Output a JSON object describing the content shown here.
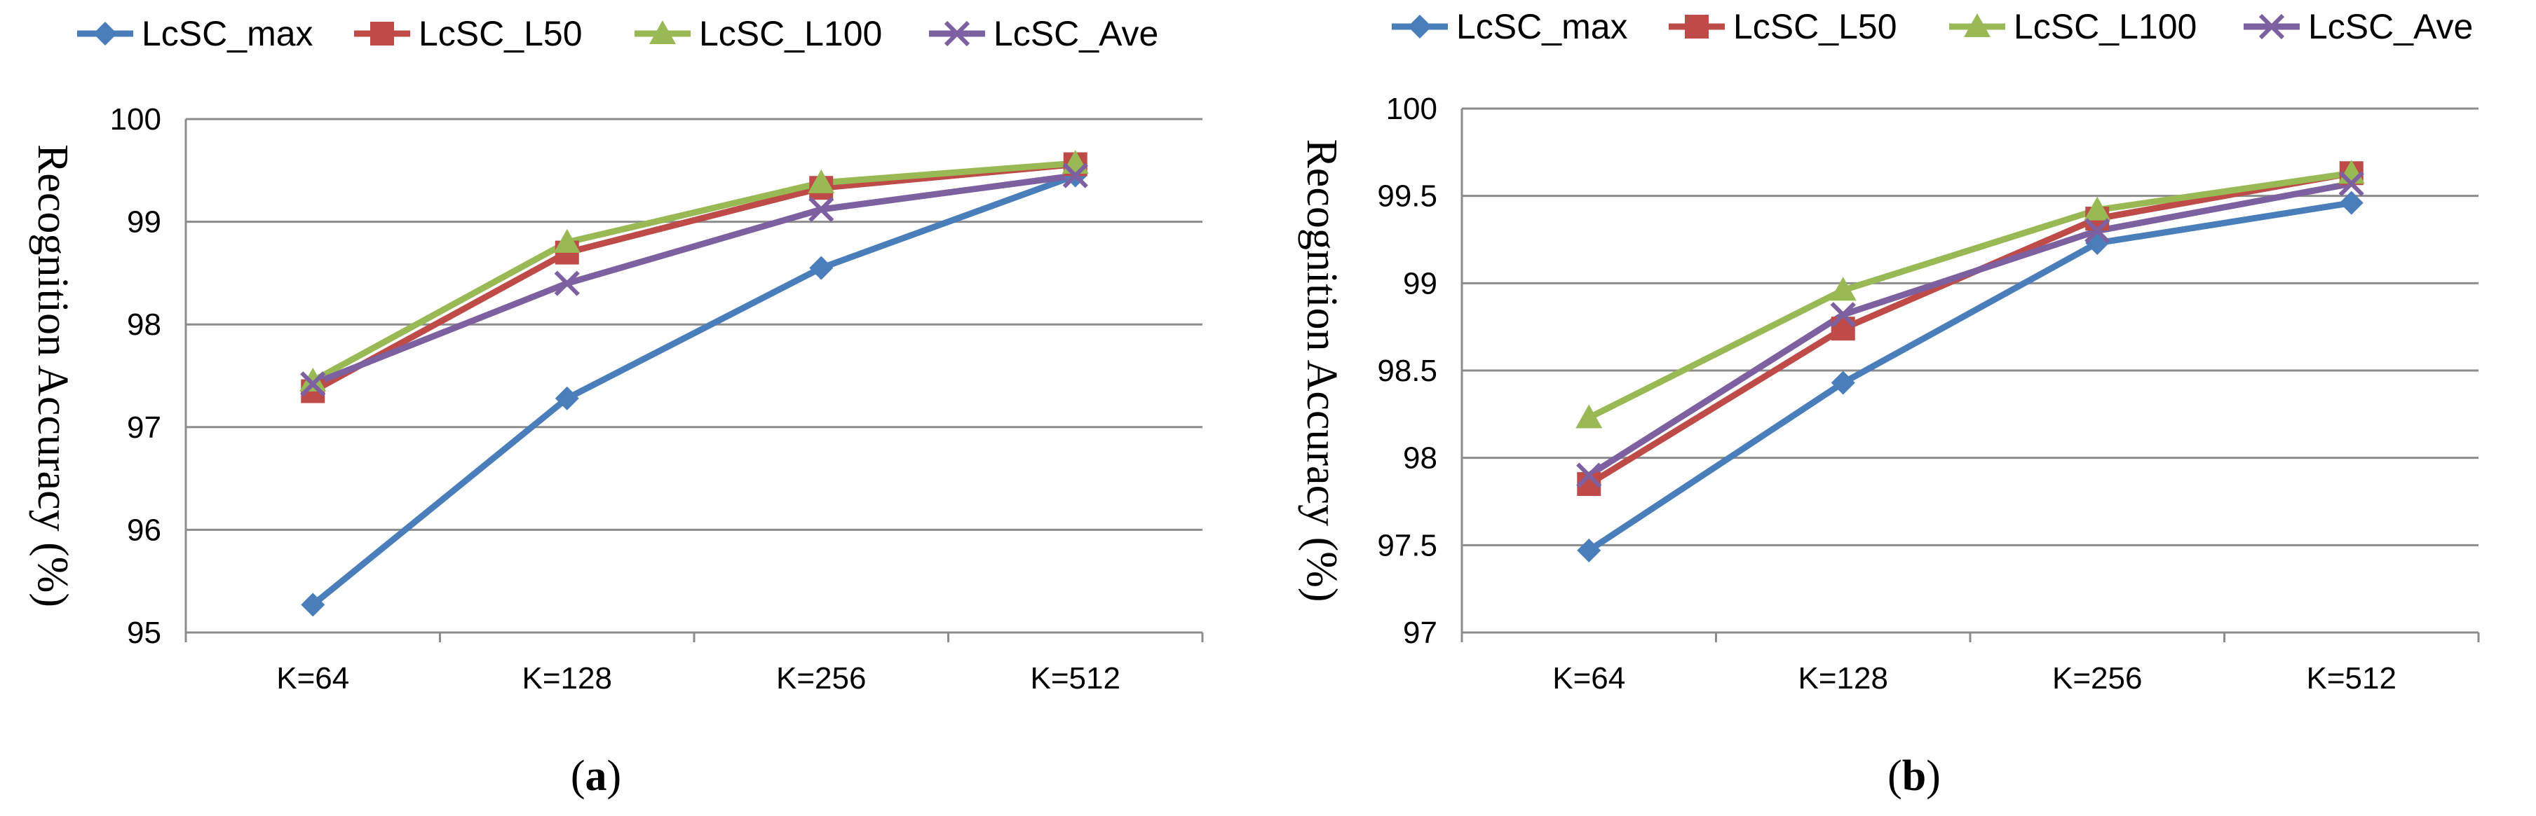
{
  "chart_data": [
    {
      "type": "line",
      "panel_label": "a",
      "categories": [
        "K=64",
        "K=128",
        "K=256",
        "K=512"
      ],
      "ylabel": "Recognition Accuracy (%)",
      "ylim": [
        95,
        100
      ],
      "yticks": [
        "95",
        "96",
        "97",
        "98",
        "99",
        "100"
      ],
      "grid": true,
      "legend_placement": "top",
      "series": [
        {
          "name": "LcSC_max",
          "color": "#4a7ebb",
          "marker": "diamond",
          "values": [
            95.27,
            97.28,
            98.55,
            99.45
          ]
        },
        {
          "name": "LcSC_L50",
          "color": "#be4b48",
          "marker": "square",
          "values": [
            97.35,
            98.7,
            99.33,
            99.56
          ]
        },
        {
          "name": "LcSC_L100",
          "color": "#98b954",
          "marker": "triangle",
          "values": [
            97.45,
            98.8,
            99.38,
            99.57
          ]
        },
        {
          "name": "LcSC_Ave",
          "color": "#7d60a0",
          "marker": "x",
          "values": [
            97.42,
            98.4,
            99.12,
            99.45
          ]
        }
      ]
    },
    {
      "type": "line",
      "panel_label": "b",
      "categories": [
        "K=64",
        "K=128",
        "K=256",
        "K=512"
      ],
      "ylabel": "Recognition Accuracy (%)",
      "ylim": [
        97,
        100
      ],
      "yticks": [
        "97",
        "97.5",
        "98",
        "98.5",
        "99",
        "99.5",
        "100"
      ],
      "grid": true,
      "legend_placement": "top",
      "series": [
        {
          "name": "LcSC_max",
          "color": "#4a7ebb",
          "marker": "diamond",
          "values": [
            97.47,
            98.43,
            99.23,
            99.46
          ]
        },
        {
          "name": "LcSC_L50",
          "color": "#be4b48",
          "marker": "square",
          "values": [
            97.85,
            98.74,
            99.37,
            99.63
          ]
        },
        {
          "name": "LcSC_L100",
          "color": "#98b954",
          "marker": "triangle",
          "values": [
            98.23,
            98.96,
            99.42,
            99.63
          ]
        },
        {
          "name": "LcSC_Ave",
          "color": "#7d60a0",
          "marker": "x",
          "values": [
            97.9,
            98.82,
            99.3,
            99.57
          ]
        }
      ]
    }
  ]
}
